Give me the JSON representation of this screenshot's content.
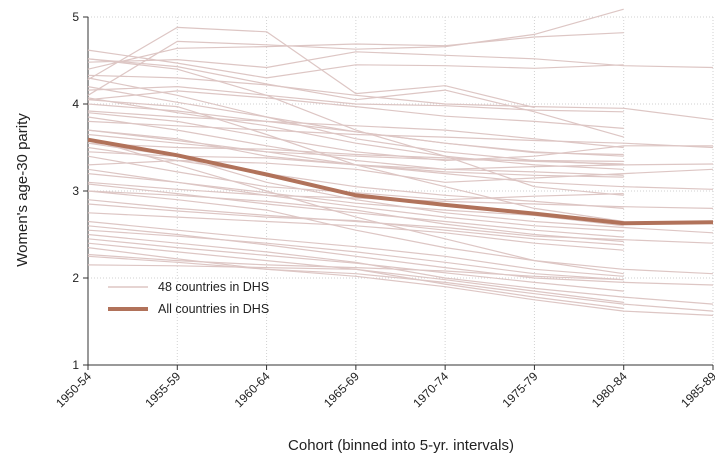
{
  "chart_data": {
    "type": "line",
    "title": "",
    "xlabel": "Cohort (binned into 5-yr. intervals)",
    "ylabel": "Women's age-30 parity",
    "categories": [
      "1950-54",
      "1955-59",
      "1960-64",
      "1965-69",
      "1970-74",
      "1975-79",
      "1980-84",
      "1985-89"
    ],
    "ylim": [
      1,
      5
    ],
    "yticks": [
      1,
      2,
      3,
      4,
      5
    ],
    "grid": true,
    "legend": {
      "placement": "bottom-left",
      "entries": [
        "48 countries in DHS",
        "All countries in DHS"
      ]
    },
    "colors": {
      "country_lines": "#ddc6c4",
      "average_line": "#b1725a"
    },
    "country_series_count": 48,
    "average_series": {
      "name": "All countries in DHS",
      "values": [
        3.59,
        3.41,
        3.19,
        2.95,
        2.84,
        2.74,
        2.63,
        2.64
      ]
    },
    "country_series": [
      [
        4.28,
        4.88,
        4.83,
        4.12,
        4.21,
        3.96,
        null,
        null
      ],
      [
        4.1,
        4.72,
        4.68,
        4.63,
        4.66,
        4.8,
        5.09,
        null
      ],
      [
        4.4,
        4.64,
        4.66,
        4.69,
        4.67,
        4.77,
        4.82,
        null
      ],
      [
        4.48,
        4.51,
        4.42,
        4.6,
        4.56,
        4.52,
        4.44,
        4.42
      ],
      [
        4.62,
        4.47,
        4.3,
        4.45,
        4.44,
        4.41,
        4.45,
        null
      ],
      [
        4.52,
        4.43,
        4.23,
        4.05,
        4.16,
        3.91,
        3.62,
        null
      ],
      [
        4.33,
        4.3,
        4.22,
        4.1,
        4.0,
        3.97,
        3.95,
        3.82
      ],
      [
        4.16,
        4.2,
        4.1,
        4.0,
        3.98,
        3.93,
        3.91,
        null
      ],
      [
        4.05,
        4.15,
        4.07,
        3.97,
        3.86,
        3.8,
        3.72,
        null
      ],
      [
        4.3,
        4.1,
        3.85,
        3.6,
        3.45,
        3.35,
        3.3,
        null
      ],
      [
        4.0,
        3.92,
        3.8,
        3.75,
        3.7,
        3.6,
        3.5,
        null
      ],
      [
        4.2,
        4.02,
        3.85,
        3.68,
        3.55,
        3.45,
        3.4,
        null
      ],
      [
        3.8,
        3.75,
        3.7,
        3.65,
        3.62,
        3.58,
        3.55,
        3.5
      ],
      [
        4.07,
        3.9,
        3.75,
        3.55,
        3.4,
        3.3,
        3.25,
        null
      ],
      [
        3.92,
        3.85,
        3.8,
        3.68,
        3.55,
        3.44,
        3.42,
        null
      ],
      [
        3.9,
        3.8,
        3.62,
        3.45,
        3.35,
        3.4,
        3.52,
        3.52
      ],
      [
        3.65,
        3.55,
        3.45,
        3.4,
        3.36,
        3.35,
        3.34,
        null
      ],
      [
        3.7,
        3.6,
        3.4,
        3.3,
        3.25,
        3.28,
        3.3,
        3.31
      ],
      [
        3.55,
        3.5,
        3.48,
        3.42,
        3.38,
        3.34,
        3.31,
        null
      ],
      [
        3.45,
        3.4,
        3.38,
        3.3,
        3.22,
        3.18,
        3.16,
        null
      ],
      [
        3.3,
        3.35,
        3.32,
        3.25,
        3.1,
        3.15,
        3.2,
        3.25
      ],
      [
        4.52,
        4.4,
        4.1,
        3.7,
        3.4,
        3.05,
        2.95,
        null
      ],
      [
        4.05,
        3.97,
        3.65,
        3.3,
        3.05,
        2.8,
        2.65,
        null
      ],
      [
        3.4,
        3.22,
        3.05,
        2.98,
        2.9,
        2.94,
        2.97,
        null
      ],
      [
        3.25,
        3.1,
        2.98,
        2.86,
        2.78,
        2.72,
        2.6,
        null
      ],
      [
        3.55,
        3.4,
        3.1,
        2.9,
        2.75,
        2.65,
        2.58,
        2.52
      ],
      [
        3.2,
        3.1,
        2.95,
        2.82,
        2.7,
        2.6,
        2.54,
        null
      ],
      [
        3.08,
        2.97,
        2.85,
        2.75,
        2.65,
        2.55,
        2.47,
        null
      ],
      [
        3.0,
        2.95,
        2.88,
        2.78,
        2.62,
        2.5,
        2.42,
        null
      ],
      [
        2.9,
        2.8,
        2.72,
        2.65,
        2.58,
        2.48,
        2.44,
        2.4
      ],
      [
        2.85,
        2.77,
        2.7,
        2.66,
        2.55,
        2.45,
        2.38,
        null
      ],
      [
        2.75,
        2.7,
        2.65,
        2.6,
        2.52,
        2.4,
        2.32,
        null
      ],
      [
        3.6,
        3.3,
        3.0,
        2.7,
        2.45,
        2.2,
        2.05,
        null
      ],
      [
        3.0,
        2.9,
        2.78,
        2.55,
        2.35,
        2.2,
        2.1,
        2.05
      ],
      [
        2.65,
        2.55,
        2.45,
        2.36,
        2.25,
        2.1,
        2.02,
        null
      ],
      [
        2.55,
        2.48,
        2.4,
        2.3,
        2.18,
        2.05,
        1.98,
        null
      ],
      [
        2.6,
        2.5,
        2.38,
        2.25,
        2.12,
        2.0,
        1.95,
        1.92
      ],
      [
        2.27,
        2.2,
        2.15,
        2.12,
        2.08,
        2.02,
        1.98,
        null
      ],
      [
        2.45,
        2.35,
        2.26,
        2.17,
        2.06,
        1.95,
        1.85,
        null
      ],
      [
        2.5,
        2.4,
        2.3,
        2.18,
        2.0,
        1.88,
        1.78,
        1.7
      ],
      [
        2.4,
        2.3,
        2.2,
        2.1,
        1.98,
        1.85,
        1.72,
        null
      ],
      [
        2.25,
        2.18,
        2.1,
        2.05,
        1.95,
        1.82,
        1.7,
        1.62
      ],
      [
        2.15,
        2.14,
        2.12,
        2.1,
        1.93,
        1.78,
        1.65,
        null
      ],
      [
        2.35,
        2.22,
        2.1,
        2.02,
        1.9,
        1.75,
        1.62,
        1.57
      ],
      [
        3.7,
        3.58,
        3.45,
        3.3,
        3.2,
        3.1,
        3.05,
        3.02
      ],
      [
        3.85,
        3.7,
        3.52,
        3.35,
        3.25,
        3.22,
        3.18,
        null
      ],
      [
        3.1,
        3.02,
        2.95,
        2.92,
        2.88,
        2.85,
        2.82,
        2.8
      ],
      [
        3.5,
        3.35,
        3.2,
        3.05,
        2.95,
        2.88,
        2.8,
        null
      ]
    ]
  }
}
